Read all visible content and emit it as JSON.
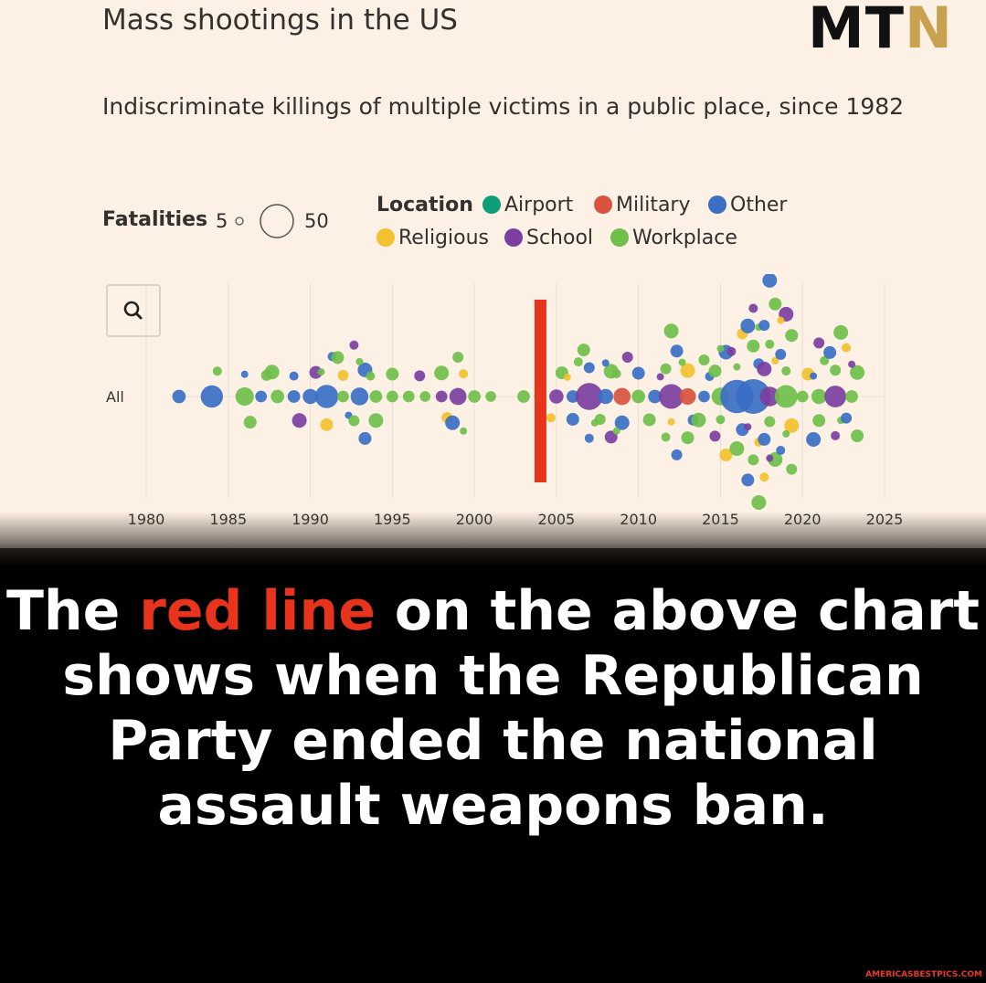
{
  "header": {
    "title": "Mass shootings in the US",
    "subtitle": "Indiscriminate killings of multiple victims in a public place, since 1982",
    "logo_main": "MT",
    "logo_accent": "N"
  },
  "legend": {
    "fatalities_label": "Fatalities",
    "fatalities_min": "5",
    "fatalities_max": "50",
    "location_label": "Location",
    "items": [
      {
        "label": "Airport",
        "color": "#0f9d7a"
      },
      {
        "label": "Military",
        "color": "#d9533f"
      },
      {
        "label": "Other",
        "color": "#3a6fc4"
      },
      {
        "label": "Religious",
        "color": "#f2c12e"
      },
      {
        "label": "School",
        "color": "#7b3fa0"
      },
      {
        "label": "Workplace",
        "color": "#6fbf4a"
      }
    ]
  },
  "search_icon": "search-icon",
  "chart_data": {
    "type": "scatter",
    "row_label": "All",
    "x_ticks": [
      "1980",
      "1985",
      "1990",
      "1995",
      "2000",
      "2005",
      "2010",
      "2015",
      "2020",
      "2025"
    ],
    "xlim": [
      1980,
      2025
    ],
    "marker": {
      "year": 2004,
      "color": "#e8341c"
    },
    "events_by_year": [
      {
        "year": 1982,
        "count": 1,
        "max_fatalities": 8,
        "location": "Other"
      },
      {
        "year": 1984,
        "count": 2,
        "max_fatalities": 22,
        "location": "Other"
      },
      {
        "year": 1986,
        "count": 3,
        "max_fatalities": 15,
        "location": "Workplace"
      },
      {
        "year": 1987,
        "count": 2,
        "max_fatalities": 6,
        "location": "Other"
      },
      {
        "year": 1988,
        "count": 2,
        "max_fatalities": 8,
        "location": "Workplace"
      },
      {
        "year": 1989,
        "count": 3,
        "max_fatalities": 7,
        "location": "Other"
      },
      {
        "year": 1990,
        "count": 2,
        "max_fatalities": 10,
        "location": "Other"
      },
      {
        "year": 1991,
        "count": 4,
        "max_fatalities": 24,
        "location": "Other"
      },
      {
        "year": 1992,
        "count": 4,
        "max_fatalities": 6,
        "location": "Workplace"
      },
      {
        "year": 1993,
        "count": 6,
        "max_fatalities": 14,
        "location": "Other"
      },
      {
        "year": 1994,
        "count": 3,
        "max_fatalities": 7,
        "location": "Workplace"
      },
      {
        "year": 1995,
        "count": 2,
        "max_fatalities": 6,
        "location": "Workplace"
      },
      {
        "year": 1996,
        "count": 1,
        "max_fatalities": 6,
        "location": "Workplace"
      },
      {
        "year": 1997,
        "count": 2,
        "max_fatalities": 5,
        "location": "Workplace"
      },
      {
        "year": 1998,
        "count": 3,
        "max_fatalities": 6,
        "location": "School"
      },
      {
        "year": 1999,
        "count": 5,
        "max_fatalities": 13,
        "location": "School"
      },
      {
        "year": 2000,
        "count": 1,
        "max_fatalities": 7,
        "location": "Workplace"
      },
      {
        "year": 2001,
        "count": 1,
        "max_fatalities": 5,
        "location": "Workplace"
      },
      {
        "year": 2003,
        "count": 1,
        "max_fatalities": 7,
        "location": "Workplace"
      },
      {
        "year": 2004,
        "count": 1,
        "max_fatalities": 6,
        "location": "Workplace"
      },
      {
        "year": 2005,
        "count": 3,
        "max_fatalities": 9,
        "location": "School"
      },
      {
        "year": 2006,
        "count": 4,
        "max_fatalities": 7,
        "location": "Other"
      },
      {
        "year": 2007,
        "count": 5,
        "max_fatalities": 32,
        "location": "School"
      },
      {
        "year": 2008,
        "count": 5,
        "max_fatalities": 10,
        "location": "Other"
      },
      {
        "year": 2009,
        "count": 5,
        "max_fatalities": 13,
        "location": "Military"
      },
      {
        "year": 2010,
        "count": 2,
        "max_fatalities": 8,
        "location": "Workplace"
      },
      {
        "year": 2011,
        "count": 3,
        "max_fatalities": 8,
        "location": "Other"
      },
      {
        "year": 2012,
        "count": 7,
        "max_fatalities": 27,
        "location": "School"
      },
      {
        "year": 2013,
        "count": 5,
        "max_fatalities": 12,
        "location": "Military"
      },
      {
        "year": 2014,
        "count": 4,
        "max_fatalities": 6,
        "location": "Other"
      },
      {
        "year": 2015,
        "count": 7,
        "max_fatalities": 14,
        "location": "Workplace"
      },
      {
        "year": 2016,
        "count": 6,
        "max_fatalities": 49,
        "location": "Other"
      },
      {
        "year": 2017,
        "count": 11,
        "max_fatalities": 58,
        "location": "Other"
      },
      {
        "year": 2018,
        "count": 12,
        "max_fatalities": 17,
        "location": "School"
      },
      {
        "year": 2019,
        "count": 10,
        "max_fatalities": 23,
        "location": "Workplace"
      },
      {
        "year": 2020,
        "count": 2,
        "max_fatalities": 6,
        "location": "Workplace"
      },
      {
        "year": 2021,
        "count": 6,
        "max_fatalities": 10,
        "location": "Workplace"
      },
      {
        "year": 2022,
        "count": 6,
        "max_fatalities": 21,
        "location": "School"
      },
      {
        "year": 2023,
        "count": 6,
        "max_fatalities": 7,
        "location": "Workplace"
      }
    ],
    "scale_note": ""
  },
  "caption": {
    "pre": "The ",
    "highlight": "red line",
    "post": " on the above chart shows when the Republican Party ended the national assault weapons ban."
  },
  "credit": "AMERICASBESTPICS.COM"
}
